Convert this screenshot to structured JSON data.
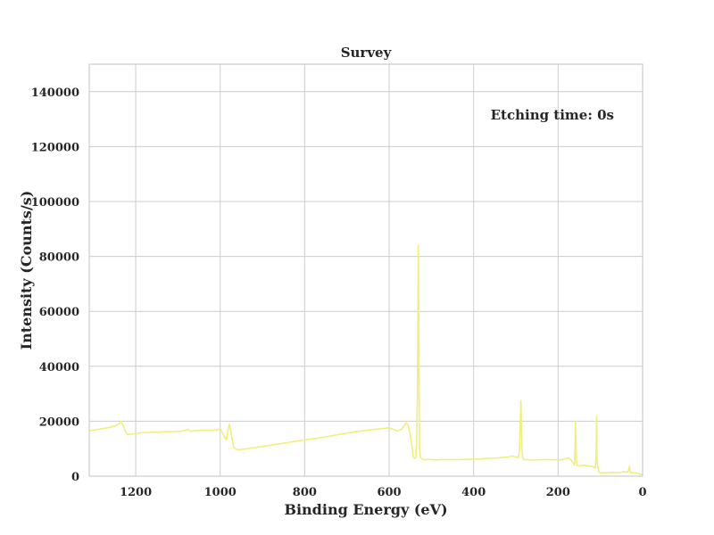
{
  "chart_data": {
    "type": "line",
    "title": "Survey",
    "xlabel": "Binding Energy (eV)",
    "ylabel": "Intensity (Counts/s)",
    "xlim": [
      1310,
      0
    ],
    "ylim": [
      0,
      150000
    ],
    "x_reversed": true,
    "grid": true,
    "annotation": "Etching time: 0s",
    "annotation_position": "top-right",
    "line_color": "#f2ee7e",
    "x_ticks": [
      {
        "value": 1200,
        "label": "1200"
      },
      {
        "value": 1000,
        "label": "1000"
      },
      {
        "value": 800,
        "label": "800"
      },
      {
        "value": 600,
        "label": "600"
      },
      {
        "value": 400,
        "label": "400"
      },
      {
        "value": 200,
        "label": "200"
      },
      {
        "value": 0,
        "label": "0"
      }
    ],
    "y_ticks": [
      {
        "value": 0,
        "label": "0"
      },
      {
        "value": 20000,
        "label": "20000"
      },
      {
        "value": 40000,
        "label": "40000"
      },
      {
        "value": 60000,
        "label": "60000"
      },
      {
        "value": 80000,
        "label": "80000"
      },
      {
        "value": 100000,
        "label": "100000"
      },
      {
        "value": 120000,
        "label": "120000"
      },
      {
        "value": 140000,
        "label": "140000"
      }
    ],
    "series": [
      {
        "x": [
          1310,
          1290,
          1270,
          1250,
          1240,
          1235,
          1230,
          1225,
          1220,
          1210,
          1200,
          1180,
          1150,
          1120,
          1090,
          1075,
          1070,
          1060,
          1040,
          1020,
          1005,
          1000,
          995,
          990,
          985,
          982,
          978,
          973,
          968,
          960,
          950,
          900,
          850,
          800,
          750,
          700,
          650,
          600,
          590,
          580,
          570,
          560,
          555,
          550,
          546,
          543,
          540,
          537,
          535,
          533,
          532,
          531,
          530,
          529,
          528,
          526,
          523,
          518,
          510,
          500,
          490,
          480,
          460,
          440,
          420,
          400,
          380,
          360,
          340,
          320,
          310,
          300,
          295,
          292,
          290,
          288,
          286,
          284,
          282,
          280,
          275,
          260,
          240,
          220,
          200,
          190,
          180,
          175,
          170,
          165,
          163,
          161,
          160,
          159,
          157,
          155,
          150,
          140,
          130,
          120,
          115,
          112,
          110,
          109,
          108,
          106,
          103,
          100,
          90,
          80,
          70,
          60,
          50,
          45,
          40,
          35,
          33,
          31,
          30,
          29,
          28,
          25,
          20,
          15,
          10,
          5,
          0
        ],
        "y": [
          16500,
          17000,
          17500,
          18200,
          19000,
          20000,
          18500,
          16500,
          15200,
          15300,
          15600,
          15900,
          16000,
          16200,
          16400,
          17000,
          16300,
          16600,
          16700,
          16700,
          16900,
          17200,
          16000,
          14500,
          13200,
          16500,
          19000,
          14500,
          10500,
          9600,
          9700,
          10800,
          12000,
          13200,
          14300,
          15700,
          16800,
          17600,
          17000,
          16500,
          17200,
          19500,
          18500,
          15000,
          11000,
          7000,
          6500,
          6800,
          12000,
          30000,
          55000,
          84000,
          60000,
          30000,
          10000,
          7000,
          6300,
          6000,
          6100,
          6000,
          5900,
          6000,
          6000,
          6000,
          6100,
          6200,
          6300,
          6500,
          6700,
          6900,
          7300,
          7000,
          6600,
          8000,
          17000,
          27500,
          12000,
          6700,
          6200,
          6000,
          6000,
          5900,
          6000,
          6000,
          5900,
          6000,
          6500,
          6600,
          6000,
          5000,
          4500,
          4000,
          10000,
          19800,
          6000,
          4000,
          3700,
          4000,
          3800,
          3500,
          3200,
          3000,
          8000,
          22000,
          6000,
          3000,
          1500,
          1200,
          1200,
          1300,
          1400,
          1300,
          1400,
          1600,
          1500,
          1500,
          2200,
          3600,
          2000,
          1600,
          1200,
          1300,
          1100,
          1200,
          900,
          700,
          600
        ]
      }
    ]
  }
}
